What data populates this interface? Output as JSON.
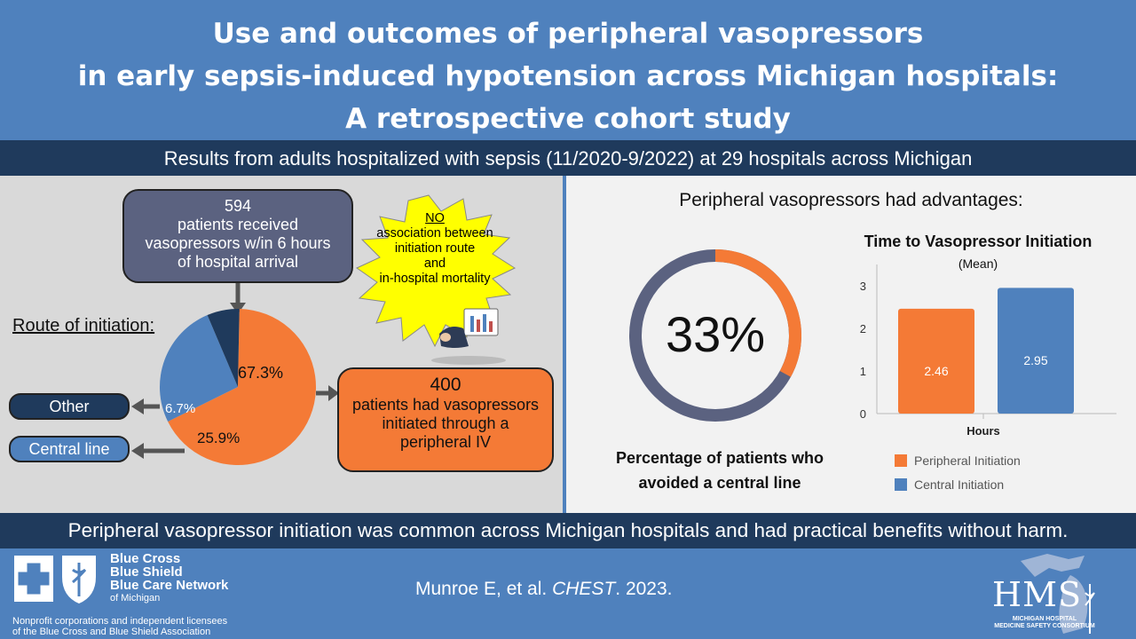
{
  "title": {
    "line1": "Use and outcomes of peripheral vasopressors",
    "line2": "in early sepsis-induced hypotension across Michigan hospitals:",
    "line3": "A retrospective cohort study"
  },
  "subtitle": "Results from adults hospitalized with sepsis (11/2020-9/2022) at 29 hospitals across Michigan",
  "left": {
    "patients_box": {
      "count": "594",
      "line1": "patients received",
      "line2": "vasopressors w/in 6 hours",
      "line3": "of hospital arrival"
    },
    "starburst": {
      "no": "NO",
      "line1": "association between",
      "line2": "initiation route",
      "line3": "and",
      "line4": "in-hospital mortality"
    },
    "route_heading": "Route of initiation:",
    "pie": {
      "slices": [
        {
          "label": "67.3%",
          "value": 67.3,
          "color": "#f47a36"
        },
        {
          "label": "25.9%",
          "value": 25.9,
          "color": "#4f81bd"
        },
        {
          "label": "6.7%",
          "value": 6.7,
          "color": "#1f3a5c"
        }
      ]
    },
    "other_label": "Other",
    "central_label": "Central line",
    "peripheral_box": {
      "count": "400",
      "line1": "patients had vasopressors",
      "line2": "initiated through a",
      "line3": "peripheral IV"
    }
  },
  "right": {
    "heading": "Peripheral vasopressors had advantages:",
    "donut": {
      "value": 33,
      "label": "33%",
      "color_fill": "#f47a36",
      "color_rest": "#5b6280"
    },
    "donut_caption_1": "Percentage of patients who",
    "donut_caption_2": "avoided a central line"
  },
  "chart_data": {
    "type": "bar",
    "title": "Time to Vasopressor Initiation",
    "title_suffix": "(Mean)",
    "categories": [
      "Hours"
    ],
    "series": [
      {
        "name": "Peripheral Initiation",
        "values": [
          2.46
        ],
        "color": "#f47a36"
      },
      {
        "name": "Central Initiation",
        "values": [
          2.95
        ],
        "color": "#4f81bd"
      }
    ],
    "xlabel": "Hours",
    "ylim": [
      0,
      3
    ],
    "yticks": [
      "0",
      "1",
      "2",
      "3"
    ],
    "legend": "bottom"
  },
  "bottom_bar": "Peripheral vasopressor initiation was common across Michigan hospitals and had practical benefits without harm.",
  "footer": {
    "bcbs_line1": "Blue Cross",
    "bcbs_line2": "Blue Shield",
    "bcbs_line3": "Blue Care Network",
    "bcbs_line4": "of Michigan",
    "disclaimer_1": "Nonprofit corporations and independent licensees",
    "disclaimer_2": "of the Blue Cross and Blue Shield Association",
    "citation_authors": "Munroe E, et al.",
    "citation_journal": "CHEST",
    "citation_year": ". 2023.",
    "hms_logo": "HMS",
    "hms_caption_1": "MICHIGAN HOSPITAL",
    "hms_caption_2": "MEDICINE SAFETY CONSORTIUM"
  }
}
